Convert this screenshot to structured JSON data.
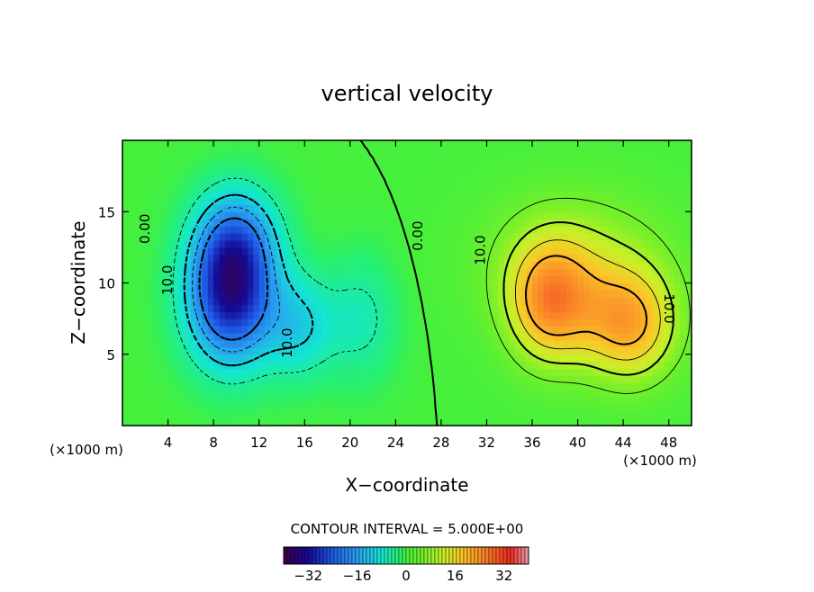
{
  "chart_data": {
    "type": "heatmap",
    "title": "vertical velocity",
    "xlabel": "X−coordinate",
    "ylabel": "Z−coordinate",
    "x_units_left": "(×1000 m)",
    "x_units_right": "(×1000 m)",
    "xlim": [
      0,
      50
    ],
    "ylim": [
      0,
      20
    ],
    "x_ticks": [
      4,
      8,
      12,
      16,
      20,
      24,
      28,
      32,
      36,
      40,
      44,
      48
    ],
    "y_ticks": [
      5,
      10,
      15
    ],
    "contour_interval_text": "CONTOUR INTERVAL = 5.000E+00",
    "contour_labels": [
      {
        "text": "0.00",
        "x": 2.0,
        "y": 13.8,
        "rotate": -90
      },
      {
        "text": "10.0",
        "x": 4.0,
        "y": 10.2,
        "rotate": -90
      },
      {
        "text": "10.0",
        "x": 14.5,
        "y": 5.8,
        "rotate": -90
      },
      {
        "text": "0.00",
        "x": 26.0,
        "y": 13.3,
        "rotate": -90
      },
      {
        "text": "10.0",
        "x": 31.5,
        "y": 12.3,
        "rotate": -90
      },
      {
        "text": "10.0",
        "x": 48.0,
        "y": 8.2,
        "rotate": 90
      }
    ],
    "colorbar": {
      "range": [
        -40,
        40
      ],
      "ticks": [
        -32,
        -16,
        0,
        16,
        32
      ]
    },
    "features": [
      {
        "sign": "negative",
        "peak": -30,
        "x": 9.5,
        "y": 9.0,
        "sx": 2.6,
        "sy": 3.2
      },
      {
        "sign": "negative",
        "peak": -16,
        "x": 10.0,
        "y": 13.0,
        "sx": 2.5,
        "sy": 2.6
      },
      {
        "sign": "negative",
        "peak": -10,
        "x": 15.5,
        "y": 7.0,
        "sx": 2.2,
        "sy": 2.5
      },
      {
        "sign": "negative",
        "peak": -6,
        "x": 21.0,
        "y": 7.5,
        "sx": 2.2,
        "sy": 3.0
      },
      {
        "sign": "positive",
        "peak": 20,
        "x": 37.5,
        "y": 8.5,
        "sx": 2.6,
        "sy": 3.0
      },
      {
        "sign": "positive",
        "peak": 20,
        "x": 44.5,
        "y": 7.0,
        "sx": 3.0,
        "sy": 2.8
      },
      {
        "sign": "positive",
        "peak": 10,
        "x": 40.0,
        "y": 11.5,
        "sx": 5.5,
        "sy": 3.4
      }
    ]
  }
}
